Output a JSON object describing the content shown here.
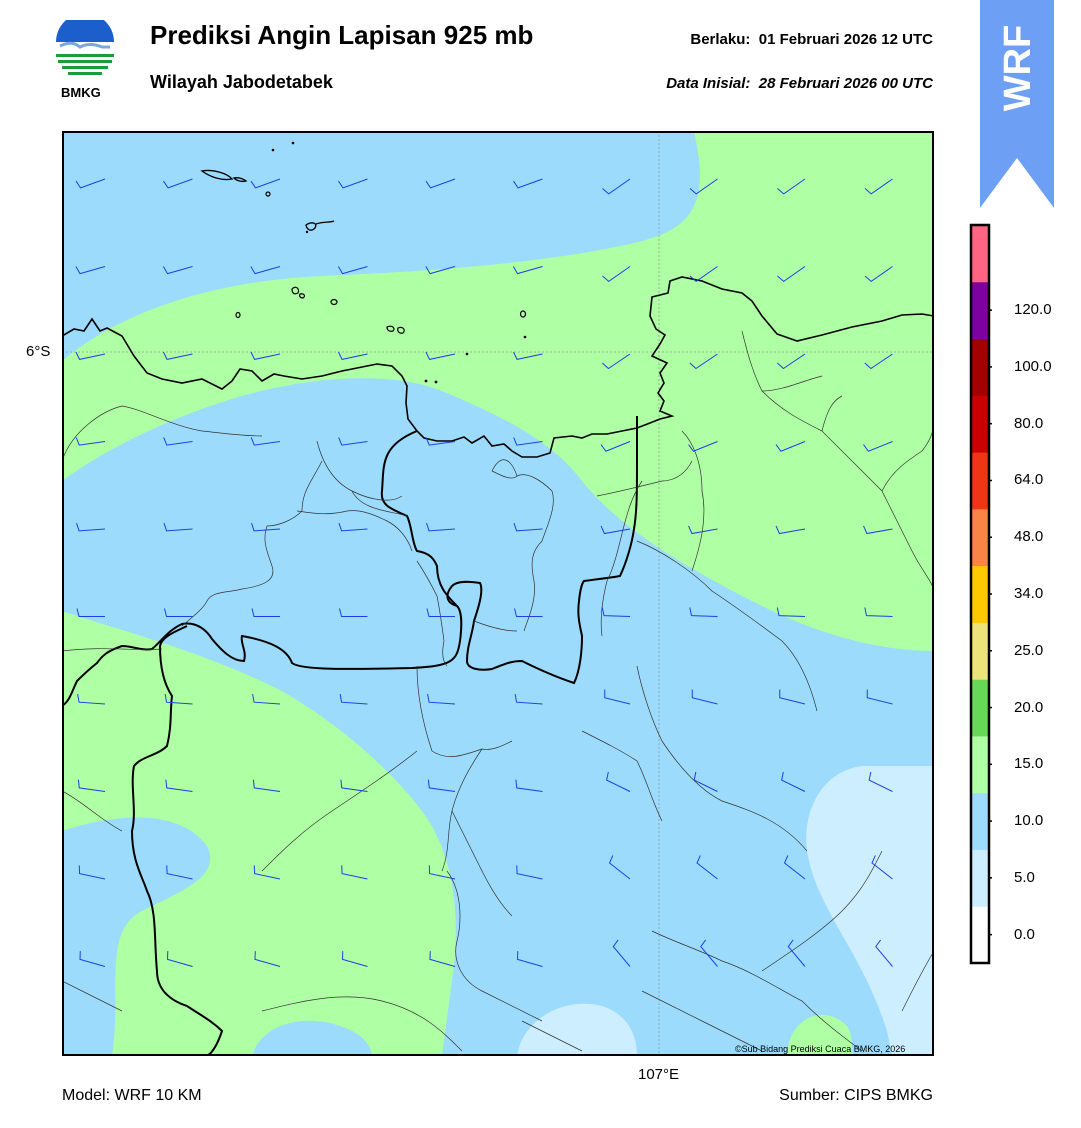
{
  "header": {
    "title": "Prediksi Angin Lapisan 925 mb",
    "subtitle": "Wilayah Jabodetabek",
    "valid_label": "Berlaku:",
    "valid_time": "01 Februari 2026 12 UTC",
    "init_label": "Data Inisial:",
    "init_time": "28 Februari 2026 00 UTC"
  },
  "logo": {
    "text": "BMKG",
    "icon": "bmkg-logo"
  },
  "badge": {
    "text": "WRF",
    "color": "#6d9ff5"
  },
  "map": {
    "lat_label": "6°S",
    "lon_label": "107°E",
    "copyright": "©Sub Bidang Prediksi Cuaca BMKG, 2026",
    "gridlines": true
  },
  "colorbar": {
    "ticks": [
      "0.0",
      "5.0",
      "10.0",
      "15.0",
      "20.0",
      "25.0",
      "34.0",
      "48.0",
      "64.0",
      "80.0",
      "100.0",
      "120.0"
    ],
    "colors": [
      "#ffffff",
      "#cdeefe",
      "#9cdbfb",
      "#afffa4",
      "#66d855",
      "#ece47a",
      "#fec901",
      "#fa8346",
      "#ef3515",
      "#c80000",
      "#a30000",
      "#7d00a0",
      "#ff6482"
    ]
  },
  "footer": {
    "model": "Model: WRF 10 KM",
    "source": "Sumber: CIPS BMKG"
  }
}
